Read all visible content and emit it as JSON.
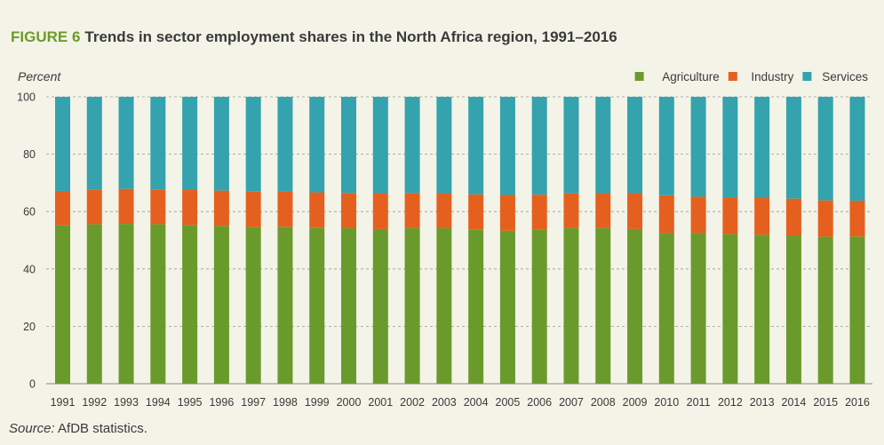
{
  "figure": {
    "label": "FIGURE 6",
    "title": "Trends in sector employment shares in the North Africa region, 1991–2016",
    "source_label": "Source:",
    "source_text": "AfDB statistics."
  },
  "chart_data": {
    "type": "bar",
    "stacked": true,
    "ylabel": "Percent",
    "xlabel": "",
    "ylim": [
      0,
      100
    ],
    "yticks": [
      0,
      20,
      40,
      60,
      80,
      100
    ],
    "grid": "horizontal dashed",
    "legend_position": "top-right",
    "categories": [
      "1991",
      "1992",
      "1993",
      "1994",
      "1995",
      "1996",
      "1997",
      "1998",
      "1999",
      "2000",
      "2001",
      "2002",
      "2003",
      "2004",
      "2005",
      "2006",
      "2007",
      "2008",
      "2009",
      "2010",
      "2011",
      "2012",
      "2013",
      "2014",
      "2015",
      "2016"
    ],
    "series": [
      {
        "name": "Agriculture",
        "color": "#6a9a2c",
        "values": [
          55.2,
          55.6,
          55.7,
          55.6,
          55.3,
          55.0,
          54.6,
          54.7,
          54.4,
          54.2,
          53.9,
          54.3,
          54.2,
          53.8,
          53.3,
          53.6,
          54.3,
          54.3,
          53.9,
          52.5,
          52.6,
          52.2,
          51.9,
          51.7,
          51.2,
          51.3
        ]
      },
      {
        "name": "Industry",
        "color": "#e5601f",
        "values": [
          12.0,
          12.0,
          12.2,
          12.0,
          12.2,
          12.3,
          12.5,
          12.3,
          12.3,
          12.3,
          12.5,
          12.2,
          12.2,
          12.2,
          12.5,
          12.3,
          12.0,
          12.1,
          12.5,
          13.2,
          12.6,
          12.8,
          12.8,
          12.8,
          12.7,
          12.5
        ]
      },
      {
        "name": "Services",
        "color": "#34a3ad",
        "values": [
          32.8,
          32.4,
          32.1,
          32.4,
          32.5,
          32.7,
          32.9,
          33.0,
          33.3,
          33.5,
          33.6,
          33.5,
          33.6,
          34.0,
          34.2,
          34.1,
          33.7,
          33.6,
          33.6,
          34.3,
          34.8,
          35.0,
          35.3,
          35.5,
          36.1,
          36.2
        ]
      }
    ]
  }
}
